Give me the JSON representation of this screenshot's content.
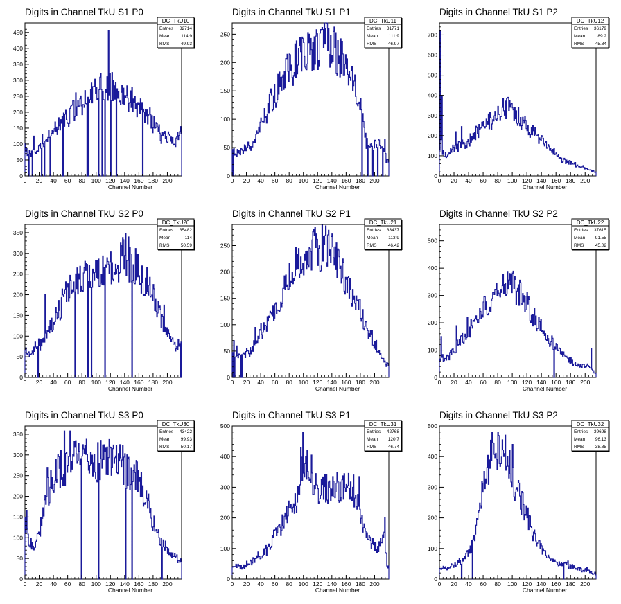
{
  "chart_data": [
    {
      "type": "bar",
      "title": "Digits in Channel TkU S1 P0",
      "xlabel": "Channel Number",
      "xlim": [
        0,
        220
      ],
      "ylim": [
        0,
        480
      ],
      "yticks": [
        0,
        50,
        100,
        150,
        200,
        250,
        300,
        350,
        400,
        450
      ],
      "xticks": [
        0,
        20,
        40,
        60,
        80,
        100,
        120,
        140,
        160,
        180,
        200
      ],
      "stats": {
        "name": "DC_TkU10",
        "rows": [
          [
            "Entries",
            "32714"
          ],
          [
            "Mean",
            "114.9"
          ],
          [
            "RMS",
            "49.93"
          ]
        ]
      },
      "profile": [
        [
          0,
          85
        ],
        [
          10,
          70
        ],
        [
          30,
          110
        ],
        [
          50,
          165
        ],
        [
          70,
          215
        ],
        [
          90,
          250
        ],
        [
          110,
          285
        ],
        [
          130,
          265
        ],
        [
          150,
          240
        ],
        [
          170,
          200
        ],
        [
          190,
          130
        ],
        [
          210,
          105
        ],
        [
          218,
          130
        ]
      ],
      "spikes": [
        [
          117,
          455
        ],
        [
          105,
          310
        ],
        [
          124,
          300
        ],
        [
          136,
          285
        ],
        [
          96,
          280
        ],
        [
          218,
          155
        ],
        [
          24,
          130
        ],
        [
          12,
          125
        ]
      ],
      "drops": [
        5,
        10,
        23,
        27,
        35,
        53,
        87,
        89,
        103,
        108,
        112,
        120,
        128,
        165
      ],
      "seed": 11
    },
    {
      "type": "bar",
      "title": "Digits in Channel TkU S1 P1",
      "xlabel": "Channel Number",
      "xlim": [
        0,
        220
      ],
      "ylim": [
        0,
        270
      ],
      "yticks": [
        0,
        50,
        100,
        150,
        200,
        250
      ],
      "xticks": [
        0,
        20,
        40,
        60,
        80,
        100,
        120,
        140,
        160,
        180,
        200
      ],
      "stats": {
        "name": "DC_TkU11",
        "rows": [
          [
            "Entries",
            "31771"
          ],
          [
            "Mean",
            "111.9"
          ],
          [
            "RMS",
            "46.97"
          ]
        ]
      },
      "profile": [
        [
          0,
          45
        ],
        [
          15,
          45
        ],
        [
          30,
          55
        ],
        [
          50,
          120
        ],
        [
          70,
          170
        ],
        [
          90,
          205
        ],
        [
          110,
          220
        ],
        [
          130,
          235
        ],
        [
          150,
          215
        ],
        [
          170,
          160
        ],
        [
          180,
          120
        ],
        [
          188,
          60
        ],
        [
          200,
          50
        ],
        [
          212,
          55
        ],
        [
          218,
          25
        ]
      ],
      "spikes": [
        [
          126,
          262
        ],
        [
          118,
          258
        ],
        [
          142,
          255
        ],
        [
          108,
          250
        ],
        [
          98,
          245
        ],
        [
          214,
          65
        ]
      ],
      "drops": [
        1,
        182,
        190,
        197,
        204,
        211
      ],
      "seed": 12
    },
    {
      "type": "bar",
      "title": "Digits in Channel TkU S1 P2",
      "xlabel": "Channel Number",
      "xlim": [
        0,
        215
      ],
      "ylim": [
        0,
        760
      ],
      "yticks": [
        0,
        100,
        200,
        300,
        400,
        500,
        600,
        700
      ],
      "xticks": [
        0,
        20,
        40,
        60,
        80,
        100,
        120,
        140,
        160,
        180,
        200
      ],
      "stats": {
        "name": "DC_TkU12",
        "rows": [
          [
            "Entries",
            "36179"
          ],
          [
            "Mean",
            "89.2"
          ],
          [
            "RMS",
            "45.84"
          ]
        ]
      },
      "profile": [
        [
          0,
          110
        ],
        [
          10,
          110
        ],
        [
          20,
          140
        ],
        [
          40,
          170
        ],
        [
          60,
          240
        ],
        [
          80,
          310
        ],
        [
          95,
          345
        ],
        [
          110,
          290
        ],
        [
          130,
          210
        ],
        [
          150,
          140
        ],
        [
          170,
          80
        ],
        [
          190,
          55
        ],
        [
          205,
          30
        ],
        [
          212,
          20
        ]
      ],
      "spikes": [
        [
          1,
          720
        ],
        [
          3,
          400
        ],
        [
          90,
          372
        ],
        [
          98,
          358
        ],
        [
          22,
          220
        ],
        [
          30,
          245
        ],
        [
          60,
          270
        ],
        [
          2,
          180
        ]
      ],
      "drops": [],
      "seed": 13
    },
    {
      "type": "bar",
      "title": "Digits in Channel TkU S2 P0",
      "xlabel": "Channel Number",
      "xlim": [
        0,
        220
      ],
      "ylim": [
        0,
        370
      ],
      "yticks": [
        0,
        50,
        100,
        150,
        200,
        250,
        300,
        350
      ],
      "xticks": [
        0,
        20,
        40,
        60,
        80,
        100,
        120,
        140,
        160,
        180,
        200
      ],
      "stats": {
        "name": "DC_TkU20",
        "rows": [
          [
            "Entries",
            "35482"
          ],
          [
            "Mean",
            "114"
          ],
          [
            "RMS",
            "50.59"
          ]
        ]
      },
      "profile": [
        [
          0,
          65
        ],
        [
          10,
          60
        ],
        [
          20,
          80
        ],
        [
          40,
          130
        ],
        [
          60,
          215
        ],
        [
          80,
          235
        ],
        [
          100,
          245
        ],
        [
          120,
          260
        ],
        [
          140,
          295
        ],
        [
          160,
          255
        ],
        [
          180,
          200
        ],
        [
          190,
          145
        ],
        [
          200,
          110
        ],
        [
          210,
          75
        ],
        [
          218,
          80
        ]
      ],
      "spikes": [
        [
          141,
          348
        ],
        [
          145,
          340
        ],
        [
          134,
          325
        ],
        [
          28,
          200
        ],
        [
          218,
          135
        ],
        [
          155,
          312
        ],
        [
          195,
          175
        ]
      ],
      "drops": [
        18,
        70,
        88,
        93,
        112,
        150,
        218
      ],
      "seed": 21
    },
    {
      "type": "bar",
      "title": "Digits in Channel TkU S2 P1",
      "xlabel": "Channel Number",
      "xlim": [
        0,
        220
      ],
      "ylim": [
        0,
        290
      ],
      "yticks": [
        0,
        50,
        100,
        150,
        200,
        250
      ],
      "xticks": [
        0,
        20,
        40,
        60,
        80,
        100,
        120,
        140,
        160,
        180,
        200
      ],
      "stats": {
        "name": "DC_TkU21",
        "rows": [
          [
            "Entries",
            "33437"
          ],
          [
            "Mean",
            "113.9"
          ],
          [
            "RMS",
            "46.42"
          ]
        ]
      },
      "profile": [
        [
          0,
          40
        ],
        [
          10,
          40
        ],
        [
          20,
          45
        ],
        [
          30,
          60
        ],
        [
          50,
          105
        ],
        [
          70,
          160
        ],
        [
          90,
          210
        ],
        [
          110,
          240
        ],
        [
          130,
          250
        ],
        [
          150,
          220
        ],
        [
          170,
          155
        ],
        [
          190,
          90
        ],
        [
          205,
          55
        ],
        [
          215,
          25
        ]
      ],
      "spikes": [
        [
          118,
          272
        ],
        [
          140,
          272
        ],
        [
          128,
          268
        ],
        [
          2,
          70
        ],
        [
          6,
          60
        ],
        [
          32,
          95
        ]
      ],
      "drops": [
        1,
        3,
        12,
        14
      ],
      "seed": 22
    },
    {
      "type": "bar",
      "title": "Digits in Channel TkU S2 P2",
      "xlabel": "Channel Number",
      "xlim": [
        0,
        215
      ],
      "ylim": [
        0,
        560
      ],
      "yticks": [
        0,
        100,
        200,
        300,
        400,
        500
      ],
      "xticks": [
        0,
        20,
        40,
        60,
        80,
        100,
        120,
        140,
        160,
        180,
        200
      ],
      "stats": {
        "name": "DC_TkU22",
        "rows": [
          [
            "Entries",
            "37615"
          ],
          [
            "Mean",
            "91.55"
          ],
          [
            "RMS",
            "45.02"
          ]
        ]
      },
      "profile": [
        [
          0,
          70
        ],
        [
          10,
          70
        ],
        [
          20,
          100
        ],
        [
          40,
          170
        ],
        [
          60,
          250
        ],
        [
          80,
          320
        ],
        [
          95,
          365
        ],
        [
          110,
          310
        ],
        [
          130,
          220
        ],
        [
          150,
          140
        ],
        [
          170,
          80
        ],
        [
          190,
          45
        ],
        [
          205,
          40
        ],
        [
          212,
          20
        ]
      ],
      "spikes": [
        [
          93,
          388
        ],
        [
          100,
          382
        ],
        [
          23,
          190
        ],
        [
          38,
          220
        ],
        [
          47,
          205
        ],
        [
          208,
          105
        ],
        [
          2,
          150
        ]
      ],
      "drops": [
        157
      ],
      "seed": 23
    },
    {
      "type": "bar",
      "title": "Digits in Channel TkU S3 P0",
      "xlabel": "Channel Number",
      "xlim": [
        0,
        220
      ],
      "ylim": [
        0,
        370
      ],
      "yticks": [
        0,
        50,
        100,
        150,
        200,
        250,
        300,
        350
      ],
      "xticks": [
        0,
        20,
        40,
        60,
        80,
        100,
        120,
        140,
        160,
        180,
        200
      ],
      "stats": {
        "name": "DC_TkU30",
        "rows": [
          [
            "Entries",
            "43422"
          ],
          [
            "Mean",
            "99.93"
          ],
          [
            "RMS",
            "50.17"
          ]
        ]
      },
      "profile": [
        [
          0,
          130
        ],
        [
          10,
          75
        ],
        [
          20,
          110
        ],
        [
          30,
          200
        ],
        [
          40,
          250
        ],
        [
          60,
          280
        ],
        [
          80,
          285
        ],
        [
          100,
          280
        ],
        [
          120,
          290
        ],
        [
          140,
          270
        ],
        [
          160,
          240
        ],
        [
          170,
          200
        ],
        [
          180,
          140
        ],
        [
          190,
          95
        ],
        [
          205,
          60
        ],
        [
          218,
          45
        ]
      ],
      "spikes": [
        [
          55,
          358
        ],
        [
          63,
          358
        ],
        [
          86,
          338
        ],
        [
          31,
          270
        ],
        [
          102,
          330
        ],
        [
          2,
          165
        ]
      ],
      "drops": [
        79,
        103,
        141,
        150,
        192
      ],
      "seed": 31
    },
    {
      "type": "bar",
      "title": "Digits in Channel TkU S3 P1",
      "xlabel": "Channel Number",
      "xlim": [
        0,
        220
      ],
      "ylim": [
        0,
        500
      ],
      "yticks": [
        0,
        100,
        200,
        300,
        400,
        500
      ],
      "xticks": [
        0,
        20,
        40,
        60,
        80,
        100,
        120,
        140,
        160,
        180,
        200
      ],
      "stats": {
        "name": "DC_TkU31",
        "rows": [
          [
            "Entries",
            "42768"
          ],
          [
            "Mean",
            "120.7"
          ],
          [
            "RMS",
            "46.74"
          ]
        ]
      },
      "profile": [
        [
          0,
          40
        ],
        [
          15,
          40
        ],
        [
          30,
          60
        ],
        [
          50,
          100
        ],
        [
          70,
          180
        ],
        [
          90,
          260
        ],
        [
          100,
          380
        ],
        [
          110,
          360
        ],
        [
          120,
          300
        ],
        [
          140,
          300
        ],
        [
          160,
          290
        ],
        [
          175,
          280
        ],
        [
          185,
          160
        ],
        [
          195,
          120
        ],
        [
          205,
          100
        ],
        [
          212,
          160
        ],
        [
          218,
          40
        ]
      ],
      "spikes": [
        [
          99,
          480
        ],
        [
          96,
          430
        ],
        [
          105,
          420
        ],
        [
          111,
          405
        ],
        [
          214,
          200
        ],
        [
          163,
          345
        ],
        [
          170,
          340
        ],
        [
          178,
          335
        ]
      ],
      "drops": [],
      "seed": 32
    },
    {
      "type": "bar",
      "title": "Digits in Channel TkU S3 P2",
      "xlabel": "Channel Number",
      "xlim": [
        0,
        215
      ],
      "ylim": [
        0,
        500
      ],
      "yticks": [
        0,
        100,
        200,
        300,
        400,
        500
      ],
      "xticks": [
        0,
        20,
        40,
        60,
        80,
        100,
        120,
        140,
        160,
        180,
        200
      ],
      "stats": {
        "name": "DC_TkU32",
        "rows": [
          [
            "Entries",
            "39698"
          ],
          [
            "Mean",
            "96.13"
          ],
          [
            "RMS",
            "38.85"
          ]
        ]
      },
      "profile": [
        [
          0,
          30
        ],
        [
          15,
          40
        ],
        [
          30,
          60
        ],
        [
          40,
          80
        ],
        [
          50,
          150
        ],
        [
          60,
          290
        ],
        [
          70,
          380
        ],
        [
          80,
          430
        ],
        [
          90,
          400
        ],
        [
          100,
          330
        ],
        [
          110,
          270
        ],
        [
          120,
          210
        ],
        [
          130,
          140
        ],
        [
          140,
          100
        ],
        [
          150,
          70
        ],
        [
          160,
          55
        ],
        [
          180,
          45
        ],
        [
          200,
          30
        ],
        [
          212,
          20
        ]
      ],
      "spikes": [
        [
          72,
          480
        ],
        [
          80,
          480
        ],
        [
          90,
          470
        ],
        [
          86,
          455
        ],
        [
          96,
          420
        ],
        [
          100,
          440
        ]
      ],
      "drops": [
        30,
        45,
        170
      ],
      "seed": 33
    }
  ]
}
